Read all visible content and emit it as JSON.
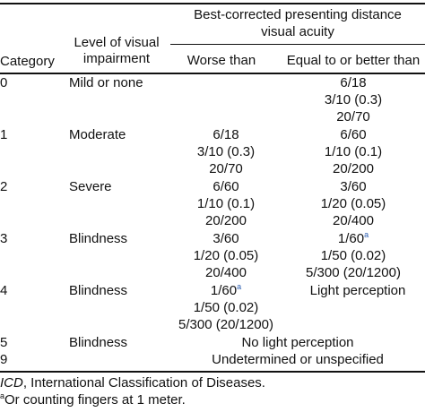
{
  "table": {
    "headers": {
      "category": "Category",
      "level_line1": "Level of visual",
      "level_line2": "impairment",
      "group_line1": "Best-corrected presenting distance",
      "group_line2": "visual acuity",
      "worse": "Worse than",
      "equal": "Equal to or better than"
    },
    "rows": [
      {
        "category": "0",
        "level": "Mild or none",
        "worse": [],
        "equal": [
          "6/18",
          "3/10 (0.3)",
          "20/70"
        ]
      },
      {
        "category": "1",
        "level": "Moderate",
        "worse": [
          "6/18",
          "3/10 (0.3)",
          "20/70"
        ],
        "equal": [
          "6/60",
          "1/10 (0.1)",
          "20/200"
        ]
      },
      {
        "category": "2",
        "level": "Severe",
        "worse": [
          "6/60",
          "1/10 (0.1)",
          "20/200"
        ],
        "equal": [
          "3/60",
          "1/20 (0.05)",
          "20/400"
        ]
      },
      {
        "category": "3",
        "level": "Blindness",
        "worse": [
          "3/60",
          "1/20 (0.05)",
          "20/400"
        ],
        "equal": [
          "1/60",
          "1/50 (0.02)",
          "5/300 (20/1200)"
        ]
      },
      {
        "category": "4",
        "level": "Blindness",
        "worse": [
          "1/60",
          "1/50 (0.02)",
          "5/300 (20/1200)"
        ],
        "equal": [
          "Light perception"
        ]
      },
      {
        "category": "5",
        "level": "Blindness",
        "span": "No light perception"
      },
      {
        "category": "9",
        "level": "",
        "span": "Undetermined or unspecified"
      }
    ],
    "superscript_a": "a"
  },
  "footnotes": {
    "icd_abbr": "ICD",
    "icd_text": ", International Classification of Diseases.",
    "a_marker": "a",
    "a_text": "Or counting fingers at 1 meter."
  }
}
